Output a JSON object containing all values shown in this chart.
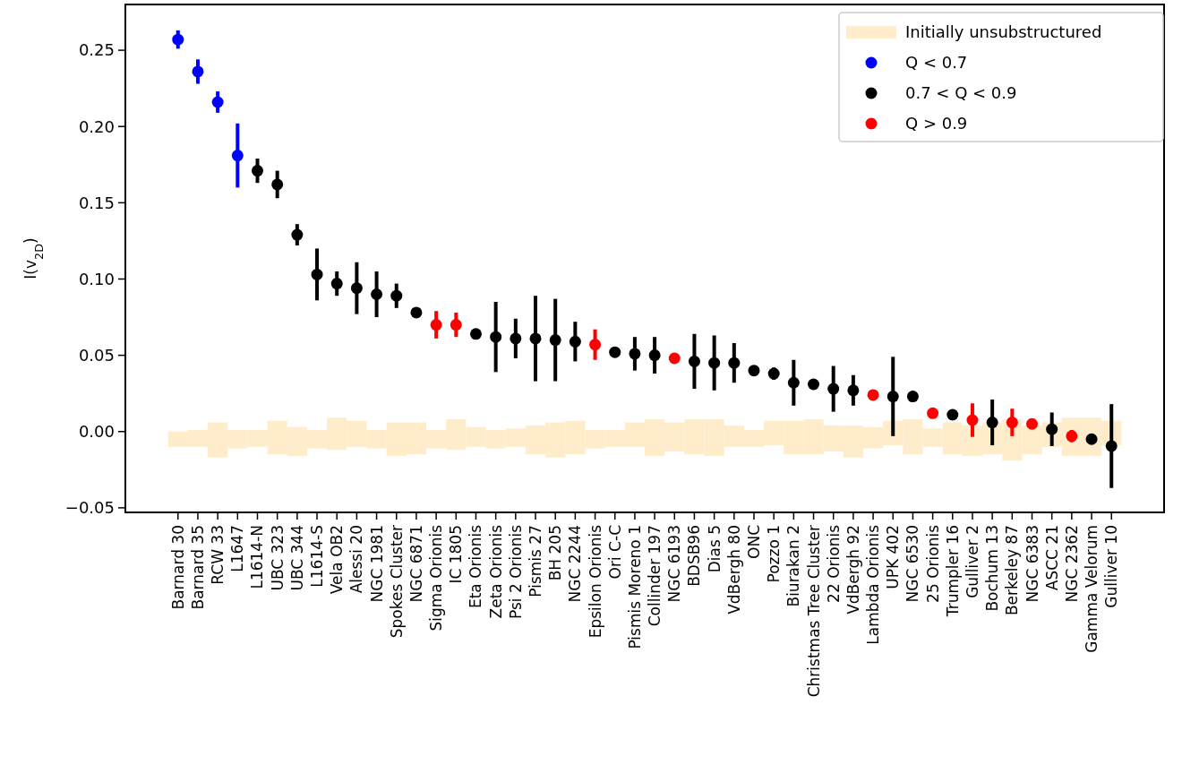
{
  "chart_data": {
    "type": "scatter",
    "ylabel": "I(v$_{2D}$)",
    "categories": [
      "Barnard 30",
      "Barnard 35",
      "RCW 33",
      "L1647",
      "L1614-N",
      "UBC 323",
      "UBC 344",
      "L1614-S",
      "Vela OB2",
      "Alessi 20",
      "NGC 1981",
      "Spokes Cluster",
      "NGC 6871",
      "Sigma Orionis",
      "IC 1805",
      "Eta Orionis",
      "Zeta Orionis",
      "Psi 2 Orionis",
      "Pismis 27",
      "BH 205",
      "NGC 2244",
      "Epsilon Orionis",
      "Ori C-C",
      "Pismis Moreno 1",
      "Collinder 197",
      "NGC 6193",
      "BDSB96",
      "Dias 5",
      "VdBergh 80",
      "ONC",
      "Pozzo 1",
      "Biurakan 2",
      "Christmas Tree Cluster",
      "22 Orionis",
      "VdBergh 92",
      "Lambda Orionis",
      "UPK 402",
      "NGC 6530",
      "25 Orionis",
      "Trumpler 16",
      "Gulliver 2",
      "Bochum 13",
      "Berkeley 87",
      "NGC 6383",
      "ASCC 21",
      "NGC 2362",
      "Gamma Velorum",
      "Gulliver 10"
    ],
    "ylim": [
      -0.053,
      0.28
    ],
    "yticks": [
      {
        "value": -0.05,
        "label": "−0.05"
      },
      {
        "value": 0,
        "label": "0.00"
      },
      {
        "value": 0.05,
        "label": "0.05"
      },
      {
        "value": 0.1,
        "label": "0.10"
      },
      {
        "value": 0.15,
        "label": "0.15"
      },
      {
        "value": 0.2,
        "label": "0.20"
      },
      {
        "value": 0.25,
        "label": "0.25"
      }
    ],
    "legend": "top right",
    "marker": "circle",
    "series": [
      {
        "type": "bar",
        "name": "Initially unsubstructured",
        "color": "#feeccb",
        "base": [
          -0.01,
          -0.01,
          -0.017,
          -0.011,
          -0.01,
          -0.015,
          -0.016,
          -0.011,
          -0.012,
          -0.01,
          -0.011,
          -0.016,
          -0.015,
          -0.011,
          -0.012,
          -0.01,
          -0.011,
          -0.01,
          -0.015,
          -0.017,
          -0.015,
          -0.011,
          -0.01,
          -0.01,
          -0.016,
          -0.013,
          -0.015,
          -0.016,
          -0.01,
          -0.01,
          -0.009,
          -0.015,
          -0.015,
          -0.013,
          -0.017,
          -0.011,
          -0.009,
          -0.015,
          -0.01,
          -0.015,
          -0.016,
          -0.015,
          -0.019,
          -0.015,
          -0.01,
          -0.016,
          -0.016,
          -0.009
        ],
        "values": [
          0.01,
          0.011,
          0.023,
          0.012,
          0.011,
          0.022,
          0.019,
          0.012,
          0.021,
          0.017,
          0.012,
          0.022,
          0.021,
          0.012,
          0.02,
          0.013,
          0.012,
          0.012,
          0.019,
          0.023,
          0.022,
          0.012,
          0.011,
          0.016,
          0.024,
          0.019,
          0.023,
          0.024,
          0.014,
          0.011,
          0.016,
          0.022,
          0.023,
          0.017,
          0.021,
          0.014,
          0.016,
          0.023,
          0.012,
          0.021,
          0.02,
          0.021,
          0.027,
          0.019,
          0.016,
          0.025,
          0.025,
          0.016
        ]
      },
      {
        "name": "Q < 0.7",
        "color": "#0000ff",
        "values": [
          0.257,
          0.236,
          0.216,
          0.181,
          null,
          null,
          null,
          null,
          null,
          null,
          null,
          null,
          null,
          null,
          null,
          null,
          null,
          null,
          null,
          null,
          null,
          null,
          null,
          null,
          null,
          null,
          null,
          null,
          null,
          null,
          null,
          null,
          null,
          null,
          null,
          null,
          null,
          null,
          null,
          null,
          null,
          null,
          null,
          null,
          null,
          null,
          null,
          null
        ],
        "errors": [
          0.006,
          0.008,
          0.007,
          0.021,
          null,
          null,
          null,
          null,
          null,
          null,
          null,
          null,
          null,
          null,
          null,
          null,
          null,
          null,
          null,
          null,
          null,
          null,
          null,
          null,
          null,
          null,
          null,
          null,
          null,
          null,
          null,
          null,
          null,
          null,
          null,
          null,
          null,
          null,
          null,
          null,
          null,
          null,
          null,
          null,
          null,
          null,
          null,
          null
        ]
      },
      {
        "name": "0.7 < Q < 0.9",
        "color": "#000000",
        "values": [
          null,
          null,
          null,
          null,
          0.171,
          0.162,
          0.129,
          0.103,
          0.097,
          0.094,
          0.09,
          0.089,
          0.078,
          null,
          null,
          0.064,
          0.062,
          0.061,
          0.061,
          0.06,
          0.059,
          null,
          0.052,
          0.051,
          0.05,
          null,
          0.046,
          0.045,
          0.045,
          0.04,
          0.038,
          0.032,
          0.031,
          0.028,
          0.027,
          null,
          0.023,
          0.023,
          null,
          0.011,
          null,
          0.006,
          null,
          null,
          0.0015,
          null,
          -0.005,
          -0.0095
        ],
        "errors": [
          null,
          null,
          null,
          null,
          0.008,
          0.009,
          0.007,
          0.017,
          0.008,
          0.017,
          0.015,
          0.008,
          0.003,
          null,
          null,
          0.003,
          0.023,
          0.013,
          0.028,
          0.027,
          0.013,
          null,
          null,
          0.011,
          0.012,
          null,
          0.018,
          0.018,
          0.013,
          null,
          0.004,
          0.015,
          null,
          0.015,
          0.01,
          null,
          0.026,
          null,
          null,
          null,
          null,
          0.015,
          null,
          null,
          0.011,
          null,
          null,
          0.0275
        ]
      },
      {
        "name": "Q > 0.9",
        "color": "#ff0000",
        "values": [
          null,
          null,
          null,
          null,
          null,
          null,
          null,
          null,
          null,
          null,
          null,
          null,
          null,
          0.07,
          0.07,
          null,
          null,
          null,
          null,
          null,
          null,
          0.057,
          null,
          null,
          null,
          0.048,
          null,
          null,
          null,
          null,
          null,
          null,
          null,
          null,
          null,
          0.024,
          null,
          null,
          0.012,
          null,
          0.0075,
          null,
          0.006,
          0.005,
          null,
          -0.003,
          null,
          null
        ],
        "errors": [
          null,
          null,
          null,
          null,
          null,
          null,
          null,
          null,
          null,
          null,
          null,
          null,
          null,
          0.009,
          0.008,
          null,
          null,
          null,
          null,
          null,
          null,
          0.01,
          null,
          null,
          null,
          null,
          null,
          null,
          null,
          null,
          null,
          null,
          null,
          null,
          null,
          null,
          null,
          null,
          null,
          null,
          0.011,
          null,
          0.009,
          null,
          null,
          0.004,
          null,
          null
        ]
      }
    ]
  }
}
